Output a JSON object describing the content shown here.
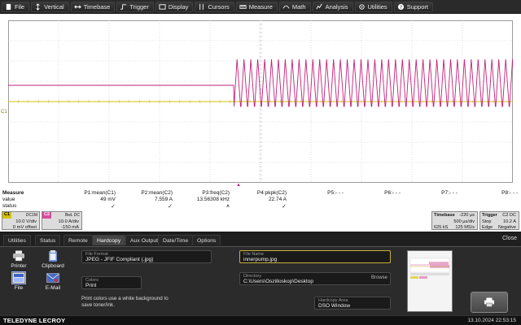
{
  "menu": [
    {
      "label": "File",
      "icon": "file-icon"
    },
    {
      "label": "Vertical",
      "icon": "vertical-icon"
    },
    {
      "label": "Timebase",
      "icon": "timebase-icon"
    },
    {
      "label": "Trigger",
      "icon": "trigger-icon"
    },
    {
      "label": "Display",
      "icon": "display-icon"
    },
    {
      "label": "Cursors",
      "icon": "cursors-icon"
    },
    {
      "label": "Measure",
      "icon": "measure-icon"
    },
    {
      "label": "Math",
      "icon": "math-icon"
    },
    {
      "label": "Analysis",
      "icon": "analysis-icon"
    },
    {
      "label": "Utilities",
      "icon": "utilities-icon"
    },
    {
      "label": "Support",
      "icon": "support-icon"
    }
  ],
  "grid": {
    "c1_label": "C1",
    "colors": {
      "c1": "#d4c000",
      "c2": "#c2207a",
      "grid": "#c8c8c8",
      "measure_marker": "#c2207a"
    }
  },
  "measure": {
    "row_labels": [
      "Measure",
      "value",
      "status"
    ],
    "columns": [
      {
        "name": "P1:mean(C1)",
        "value": "49 mV",
        "status": "✓"
      },
      {
        "name": "P2:mean(C2)",
        "value": "7.559 A",
        "status": "✓"
      },
      {
        "name": "P3:freq(C2)",
        "value": "13.56308 kHz",
        "status": "⩚"
      },
      {
        "name": "P4:pkpk(C2)",
        "value": "22.74 A",
        "status": "✓"
      },
      {
        "name": "P5:- - -",
        "value": "",
        "status": ""
      },
      {
        "name": "P6:- - -",
        "value": "",
        "status": ""
      },
      {
        "name": "P7:- - -",
        "value": "",
        "status": ""
      },
      {
        "name": "P8:- - -",
        "value": "",
        "status": ""
      }
    ]
  },
  "channels": {
    "c1": {
      "tag": "C1",
      "coupling": "DC1M",
      "scale": "10.0 V/div",
      "offset": "0 mV offset",
      "color": "#d4c000"
    },
    "c2": {
      "tag": "C2",
      "coupling": "BwL DC",
      "scale": "10.0 A/div",
      "offset": "-150 mA",
      "color": "#c2207a"
    }
  },
  "timebase": {
    "title": "Timebase",
    "delay": "-220 µs",
    "per_div": "500 µs/div",
    "samples": "625 kS",
    "rate": "125 MS/s"
  },
  "trigger": {
    "title": "Trigger",
    "source": "C2 DC",
    "mode": "Stop",
    "level": "10.2 A",
    "type": "Edge",
    "slope": "Negative"
  },
  "dialog": {
    "tabs": [
      "Utilities",
      "Status",
      "Remote",
      "Hardcopy",
      "Aux Output",
      "Date/Time",
      "Options"
    ],
    "active_tab": "Hardcopy",
    "close": "Close",
    "destinations": [
      {
        "label": "Printer",
        "icon": "printer-icon"
      },
      {
        "label": "Clipboard",
        "icon": "clipboard-icon"
      },
      {
        "label": "File",
        "icon": "file-dest-icon",
        "selected": true
      },
      {
        "label": "E-Mail",
        "icon": "email-icon"
      }
    ],
    "file_format_label": "File Format",
    "file_format": "JPEG - JFIF Compliant (.jpg)",
    "colors_label": "Colors",
    "colors": "Print",
    "note": "Print colors use a white background to save toner/ink.",
    "file_name_label": "File Name",
    "file_name": "innerpump.jpg",
    "directory_label": "Directory",
    "directory": "C:\\Users\\Oszilloskop\\Desktop",
    "browse": "Browse",
    "area_label": "Hardcopy Area",
    "area": "DSO Window"
  },
  "footer": {
    "brand": "TELEDYNE LECROY",
    "datetime": "13.10.2024 22:53:15"
  }
}
